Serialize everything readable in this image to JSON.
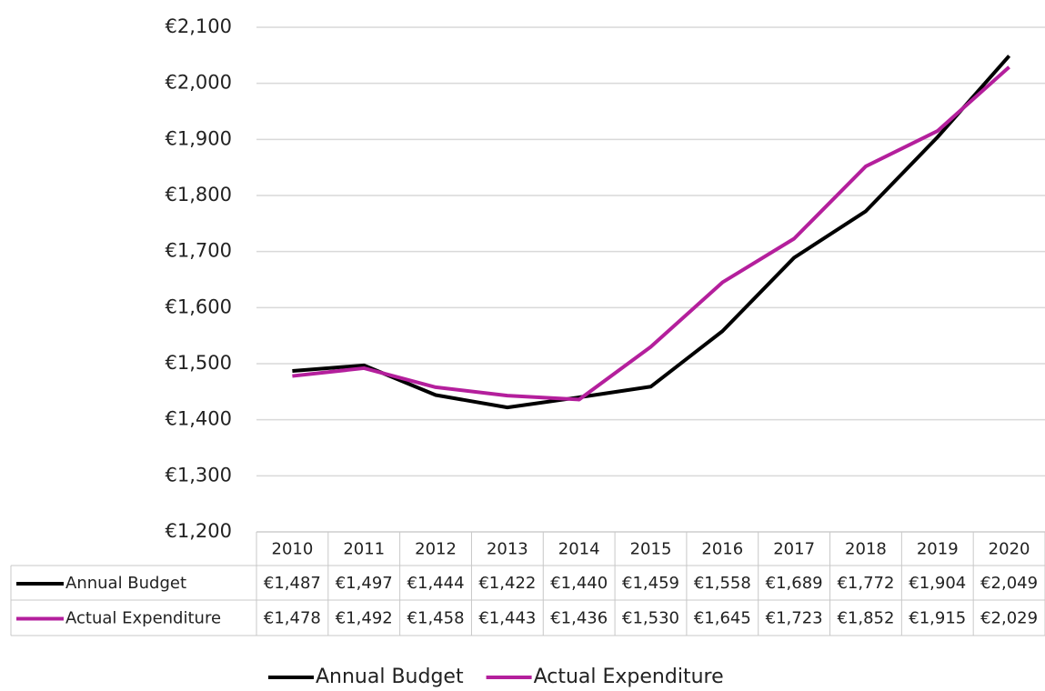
{
  "chart_data": {
    "type": "line",
    "categories": [
      "2010",
      "2011",
      "2012",
      "2013",
      "2014",
      "2015",
      "2016",
      "2017",
      "2018",
      "2019",
      "2020"
    ],
    "series": [
      {
        "name": "Annual Budget",
        "color": "#000000",
        "values": [
          1487,
          1497,
          1444,
          1422,
          1440,
          1459,
          1558,
          1689,
          1772,
          1904,
          2049
        ],
        "value_labels": [
          "€1,487",
          "€1,497",
          "€1,444",
          "€1,422",
          "€1,440",
          "€1,459",
          "€1,558",
          "€1,689",
          "€1,772",
          "€1,904",
          "€2,049"
        ]
      },
      {
        "name": "Actual Expenditure",
        "color": "#b41f9c",
        "values": [
          1478,
          1492,
          1458,
          1443,
          1436,
          1530,
          1645,
          1723,
          1852,
          1915,
          2029
        ],
        "value_labels": [
          "€1,478",
          "€1,492",
          "€1,458",
          "€1,443",
          "€1,436",
          "€1,530",
          "€1,645",
          "€1,723",
          "€1,852",
          "€1,915",
          "€2,029"
        ]
      }
    ],
    "ylim": [
      1200,
      2100
    ],
    "yticks": [
      {
        "value": 1200,
        "label": "€1,200"
      },
      {
        "value": 1300,
        "label": "€1,300"
      },
      {
        "value": 1400,
        "label": "€1,400"
      },
      {
        "value": 1500,
        "label": "€1,500"
      },
      {
        "value": 1600,
        "label": "€1,600"
      },
      {
        "value": 1700,
        "label": "€1,700"
      },
      {
        "value": 1800,
        "label": "€1,800"
      },
      {
        "value": 1900,
        "label": "€1,900"
      },
      {
        "value": 2000,
        "label": "€2,000"
      },
      {
        "value": 2100,
        "label": "€2,100"
      }
    ],
    "grid": true,
    "legend": "bottom",
    "data_table": true
  }
}
